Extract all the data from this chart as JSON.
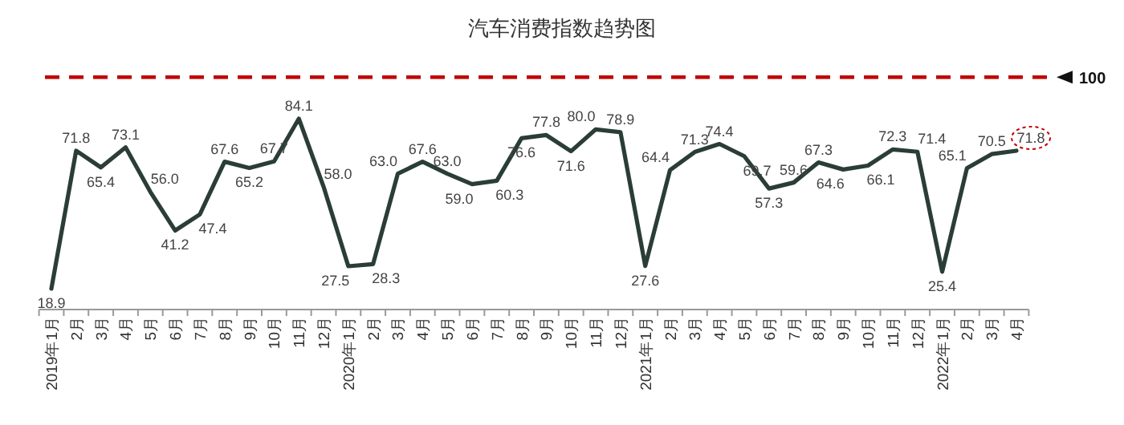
{
  "chart_data": {
    "type": "line",
    "title": "汽车消费指数趋势图",
    "categories": [
      "2019年1月",
      "2月",
      "3月",
      "4月",
      "5月",
      "6月",
      "7月",
      "8月",
      "9月",
      "10月",
      "11月",
      "12月",
      "2020年1月",
      "2月",
      "3月",
      "4月",
      "5月",
      "6月",
      "7月",
      "8月",
      "9月",
      "10月",
      "11月",
      "12月",
      "2021年1月",
      "2月",
      "3月",
      "4月",
      "5月",
      "6月",
      "7月",
      "8月",
      "9月",
      "10月",
      "11月",
      "12月",
      "2022年1月",
      "2月",
      "3月",
      "4月"
    ],
    "series": [
      {
        "color": "#2a3d37",
        "values": [
          18.9,
          71.8,
          65.4,
          73.1,
          56.0,
          41.2,
          47.4,
          67.6,
          65.2,
          67.7,
          84.1,
          58.0,
          27.5,
          28.3,
          63.0,
          67.6,
          63.0,
          59.0,
          60.3,
          76.6,
          77.8,
          71.6,
          80.0,
          78.9,
          27.6,
          64.4,
          71.3,
          74.4,
          69.7,
          57.3,
          59.6,
          67.3,
          64.6,
          66.1,
          72.3,
          71.4,
          25.4,
          65.1,
          70.5,
          71.8
        ],
        "value_labels": [
          "18.9",
          "71.8",
          "65.4",
          "73.1",
          "56.0",
          "41.2",
          "47.4",
          "67.6",
          "65.2",
          "67.7",
          "84.1",
          "58.0",
          "27.5",
          "28.3",
          "63.0",
          "67.6",
          "63.0",
          "59.0",
          "60.3",
          "76.6",
          "77.8",
          "71.6",
          "80.0",
          "78.9",
          "27.6",
          "64.4",
          "71.3",
          "74.4",
          "69.7",
          "57.3",
          "59.6",
          "67.3",
          "64.6",
          "66.1",
          "72.3",
          "71.4",
          "25.4",
          "65.1",
          "70.5",
          "71.8"
        ]
      }
    ],
    "tick_labels": "x",
    "marker": "none",
    "line_style": "solid",
    "ref_lines": [
      {
        "axis": "y",
        "value": 100,
        "label": "100",
        "color": "#c00000",
        "line_style": "dashed"
      }
    ]
  }
}
